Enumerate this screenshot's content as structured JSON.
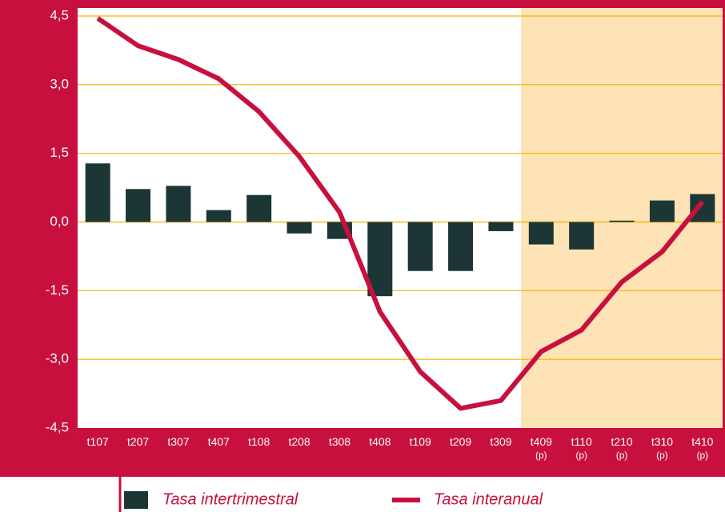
{
  "chart_data": {
    "type": "bar_line",
    "categories": [
      "t107",
      "t207",
      "t307",
      "t407",
      "t108",
      "t208",
      "t308",
      "t408",
      "t109",
      "t209",
      "t309",
      "t409 (p)",
      "t110 (p)",
      "t210 (p)",
      "t310 (p)",
      "t410 (p)"
    ],
    "series": [
      {
        "name": "Tasa intertrimestral",
        "type": "bar",
        "color": "#1c3636",
        "values": [
          1.28,
          0.72,
          0.79,
          0.26,
          0.59,
          -0.25,
          -0.37,
          -1.62,
          -1.07,
          -1.07,
          -0.2,
          -0.49,
          -0.6,
          0.03,
          0.47,
          0.61
        ]
      },
      {
        "name": "Tasa interanual",
        "type": "line",
        "color": "#c8103e",
        "values": [
          4.45,
          3.85,
          3.55,
          3.13,
          2.41,
          1.43,
          0.21,
          -1.96,
          -3.27,
          -4.07,
          -3.9,
          -2.83,
          -2.36,
          -1.31,
          -0.65,
          0.44
        ]
      }
    ],
    "ylim": [
      -4.5,
      4.5
    ],
    "yticks": [
      {
        "value": -4.5,
        "label": "-4,5"
      },
      {
        "value": -3,
        "label": "-3,0"
      },
      {
        "value": -1.5,
        "label": "-1,5"
      },
      {
        "value": 0,
        "label": "0,0"
      },
      {
        "value": 1.5,
        "label": "1,5"
      },
      {
        "value": 3,
        "label": "3,0"
      },
      {
        "value": 4.5,
        "label": "4,5"
      }
    ],
    "grid": true
  }
}
